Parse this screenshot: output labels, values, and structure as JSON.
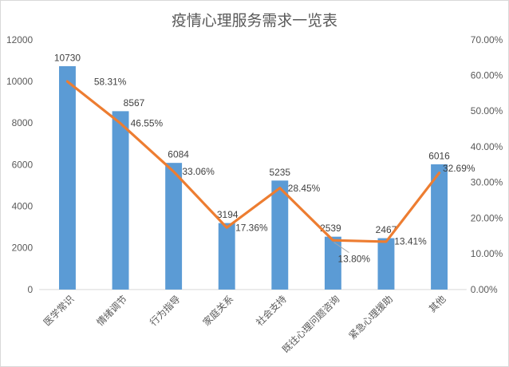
{
  "chart_data": {
    "type": "bar",
    "combo": [
      "bar",
      "line"
    ],
    "title": "疫情心理服务需求一览表",
    "categories": [
      "医学常识",
      "情绪调节",
      "行为指导",
      "家庭关系",
      "社会支持",
      "既往心理问题咨询",
      "紧急心理援助",
      "其他"
    ],
    "series": [
      {
        "type": "bar",
        "axis": "left",
        "color": "#5b9bd5",
        "values": [
          10730,
          8567,
          6084,
          3194,
          5235,
          2539,
          2467,
          6016
        ],
        "data_labels": [
          "10730",
          "8567",
          "6084",
          "3194",
          "5235",
          "2539",
          "2467",
          "6016"
        ]
      },
      {
        "type": "line",
        "axis": "right",
        "color": "#ed7d31",
        "values": [
          58.31,
          46.55,
          33.06,
          17.36,
          28.45,
          13.8,
          13.41,
          32.69
        ],
        "data_labels": [
          "58.31%",
          "46.55%",
          "33.06%",
          "17.36%",
          "28.45%",
          "13.41%",
          "32.69%"
        ],
        "data_labels_full": [
          "58.31%",
          "46.55%",
          "33.06%",
          "17.36%",
          "28.45%",
          "13.80%",
          "13.41%",
          "32.69%"
        ]
      }
    ],
    "left_axis": {
      "min": 0,
      "max": 12000,
      "step": 2000,
      "tick_labels": [
        "0",
        "2000",
        "4000",
        "6000",
        "8000",
        "10000",
        "12000"
      ]
    },
    "right_axis": {
      "min": 0,
      "max": 70,
      "step": 10,
      "tick_labels": [
        "0.00%",
        "10.00%",
        "20.00%",
        "30.00%",
        "40.00%",
        "50.00%",
        "60.00%",
        "70.00%"
      ]
    },
    "gridlines": false,
    "legend": "none",
    "colors": {
      "bar": "#5b9bd5",
      "line": "#ed7d31",
      "axis_text": "#595959",
      "data_label_text": "#404040",
      "axis_line": "#d9d9d9",
      "leader_line": "#a6a6a6",
      "title_text": "#595959",
      "background": "#ffffff",
      "frame_border": "#d9d9d9"
    }
  }
}
